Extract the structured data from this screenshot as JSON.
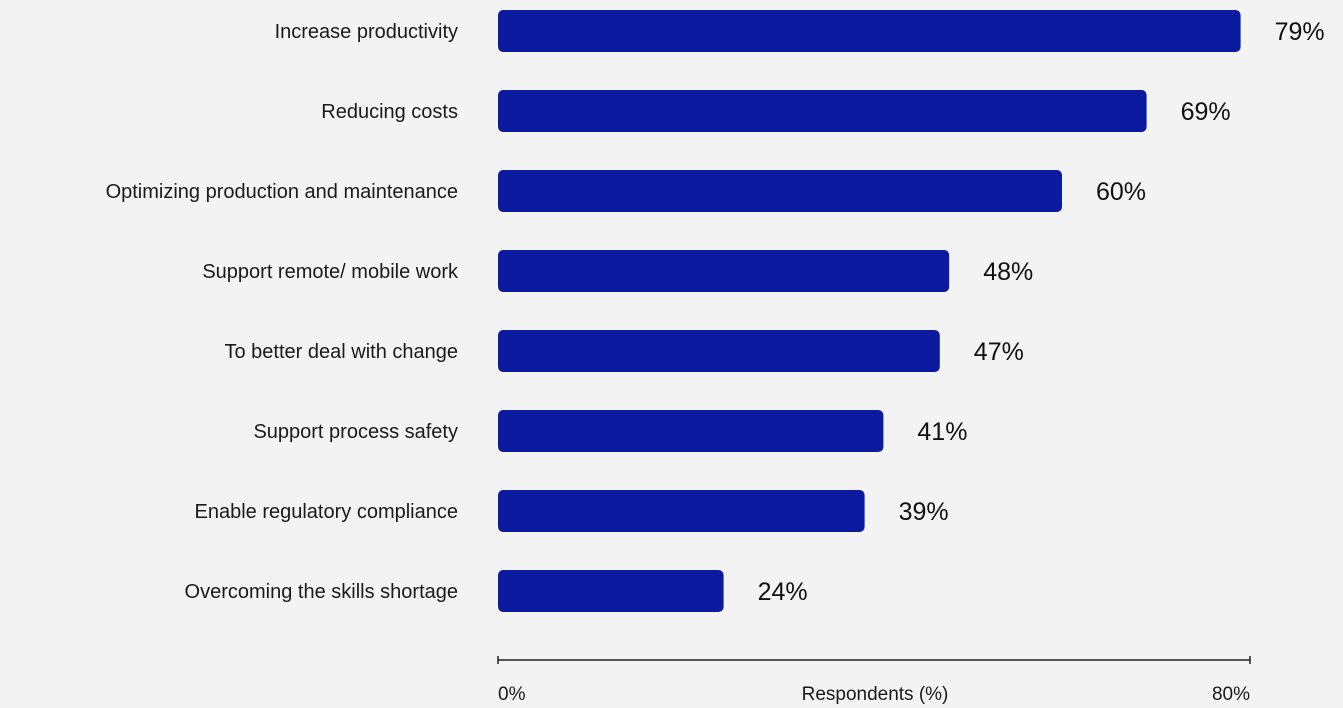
{
  "chart_data": {
    "type": "bar",
    "orientation": "horizontal",
    "categories": [
      "Increase productivity",
      "Reducing costs",
      "Optimizing production and maintenance",
      "Support remote/ mobile work",
      "To better deal with change",
      "Support process safety",
      "Enable regulatory compliance",
      "Overcoming the skills shortage"
    ],
    "values": [
      79,
      69,
      60,
      48,
      47,
      41,
      39,
      24
    ],
    "value_labels": [
      "79%",
      "69%",
      "60%",
      "48%",
      "47%",
      "41%",
      "39%",
      "24%"
    ],
    "title": "",
    "xlabel": "Respondents (%)",
    "ylabel": "",
    "xlim": [
      0,
      80
    ],
    "x_tick_labels": [
      "0%",
      "80%"
    ],
    "grid": false,
    "legend": "none",
    "bar_color": "#0c1aa0",
    "background_color": "#f3f3f3"
  }
}
